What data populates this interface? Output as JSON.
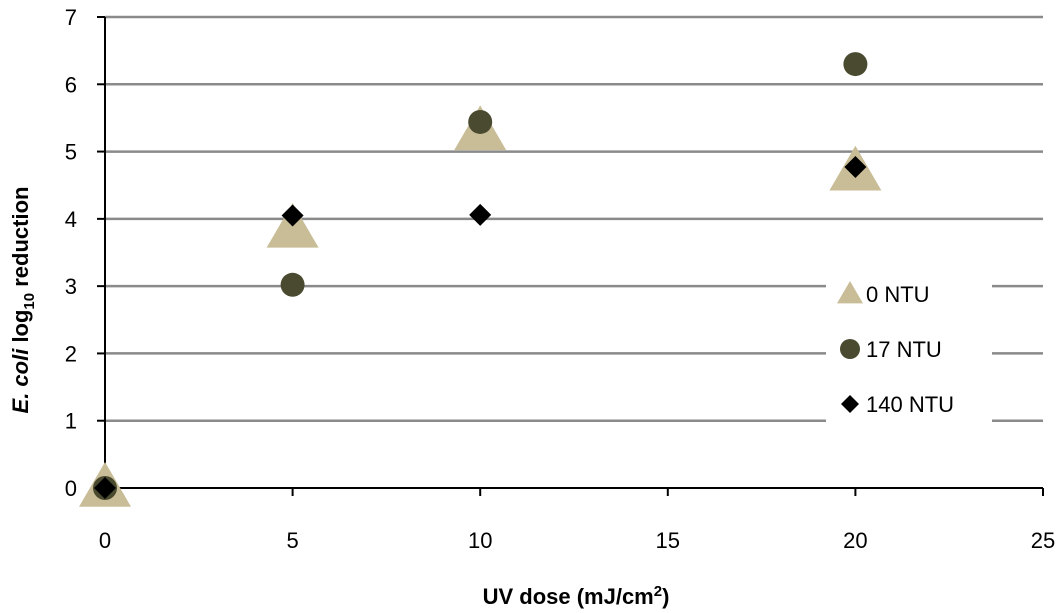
{
  "chart_data": {
    "type": "scatter",
    "xlabel": {
      "main": "UV dose (mJ/cm",
      "sup": "2",
      "tail": ")"
    },
    "ylabel": {
      "italic": "E. coli",
      "main": " log",
      "sub": "10",
      "tail": " reduction"
    },
    "xlim": [
      0,
      25
    ],
    "ylim": [
      0,
      7
    ],
    "x_ticks": [
      0,
      5,
      10,
      15,
      20,
      25
    ],
    "y_ticks": [
      0,
      1,
      2,
      3,
      4,
      5,
      6,
      7
    ],
    "grid": "horizontal",
    "legend_position": "right",
    "series": [
      {
        "name": "0 NTU",
        "marker": "triangle",
        "color": "#c8bd97",
        "points": [
          [
            0,
            0
          ],
          [
            5,
            3.85
          ],
          [
            10,
            5.3
          ],
          [
            20,
            4.7
          ]
        ]
      },
      {
        "name": "17 NTU",
        "marker": "circle",
        "color": "#4a4a30",
        "points": [
          [
            0,
            0
          ],
          [
            5,
            3.02
          ],
          [
            10,
            5.44
          ],
          [
            20,
            6.3
          ]
        ]
      },
      {
        "name": "140 NTU",
        "marker": "diamond",
        "color": "#000000",
        "points": [
          [
            0,
            0
          ],
          [
            5,
            4.05
          ],
          [
            10,
            4.06
          ],
          [
            20,
            4.77
          ]
        ]
      }
    ]
  }
}
